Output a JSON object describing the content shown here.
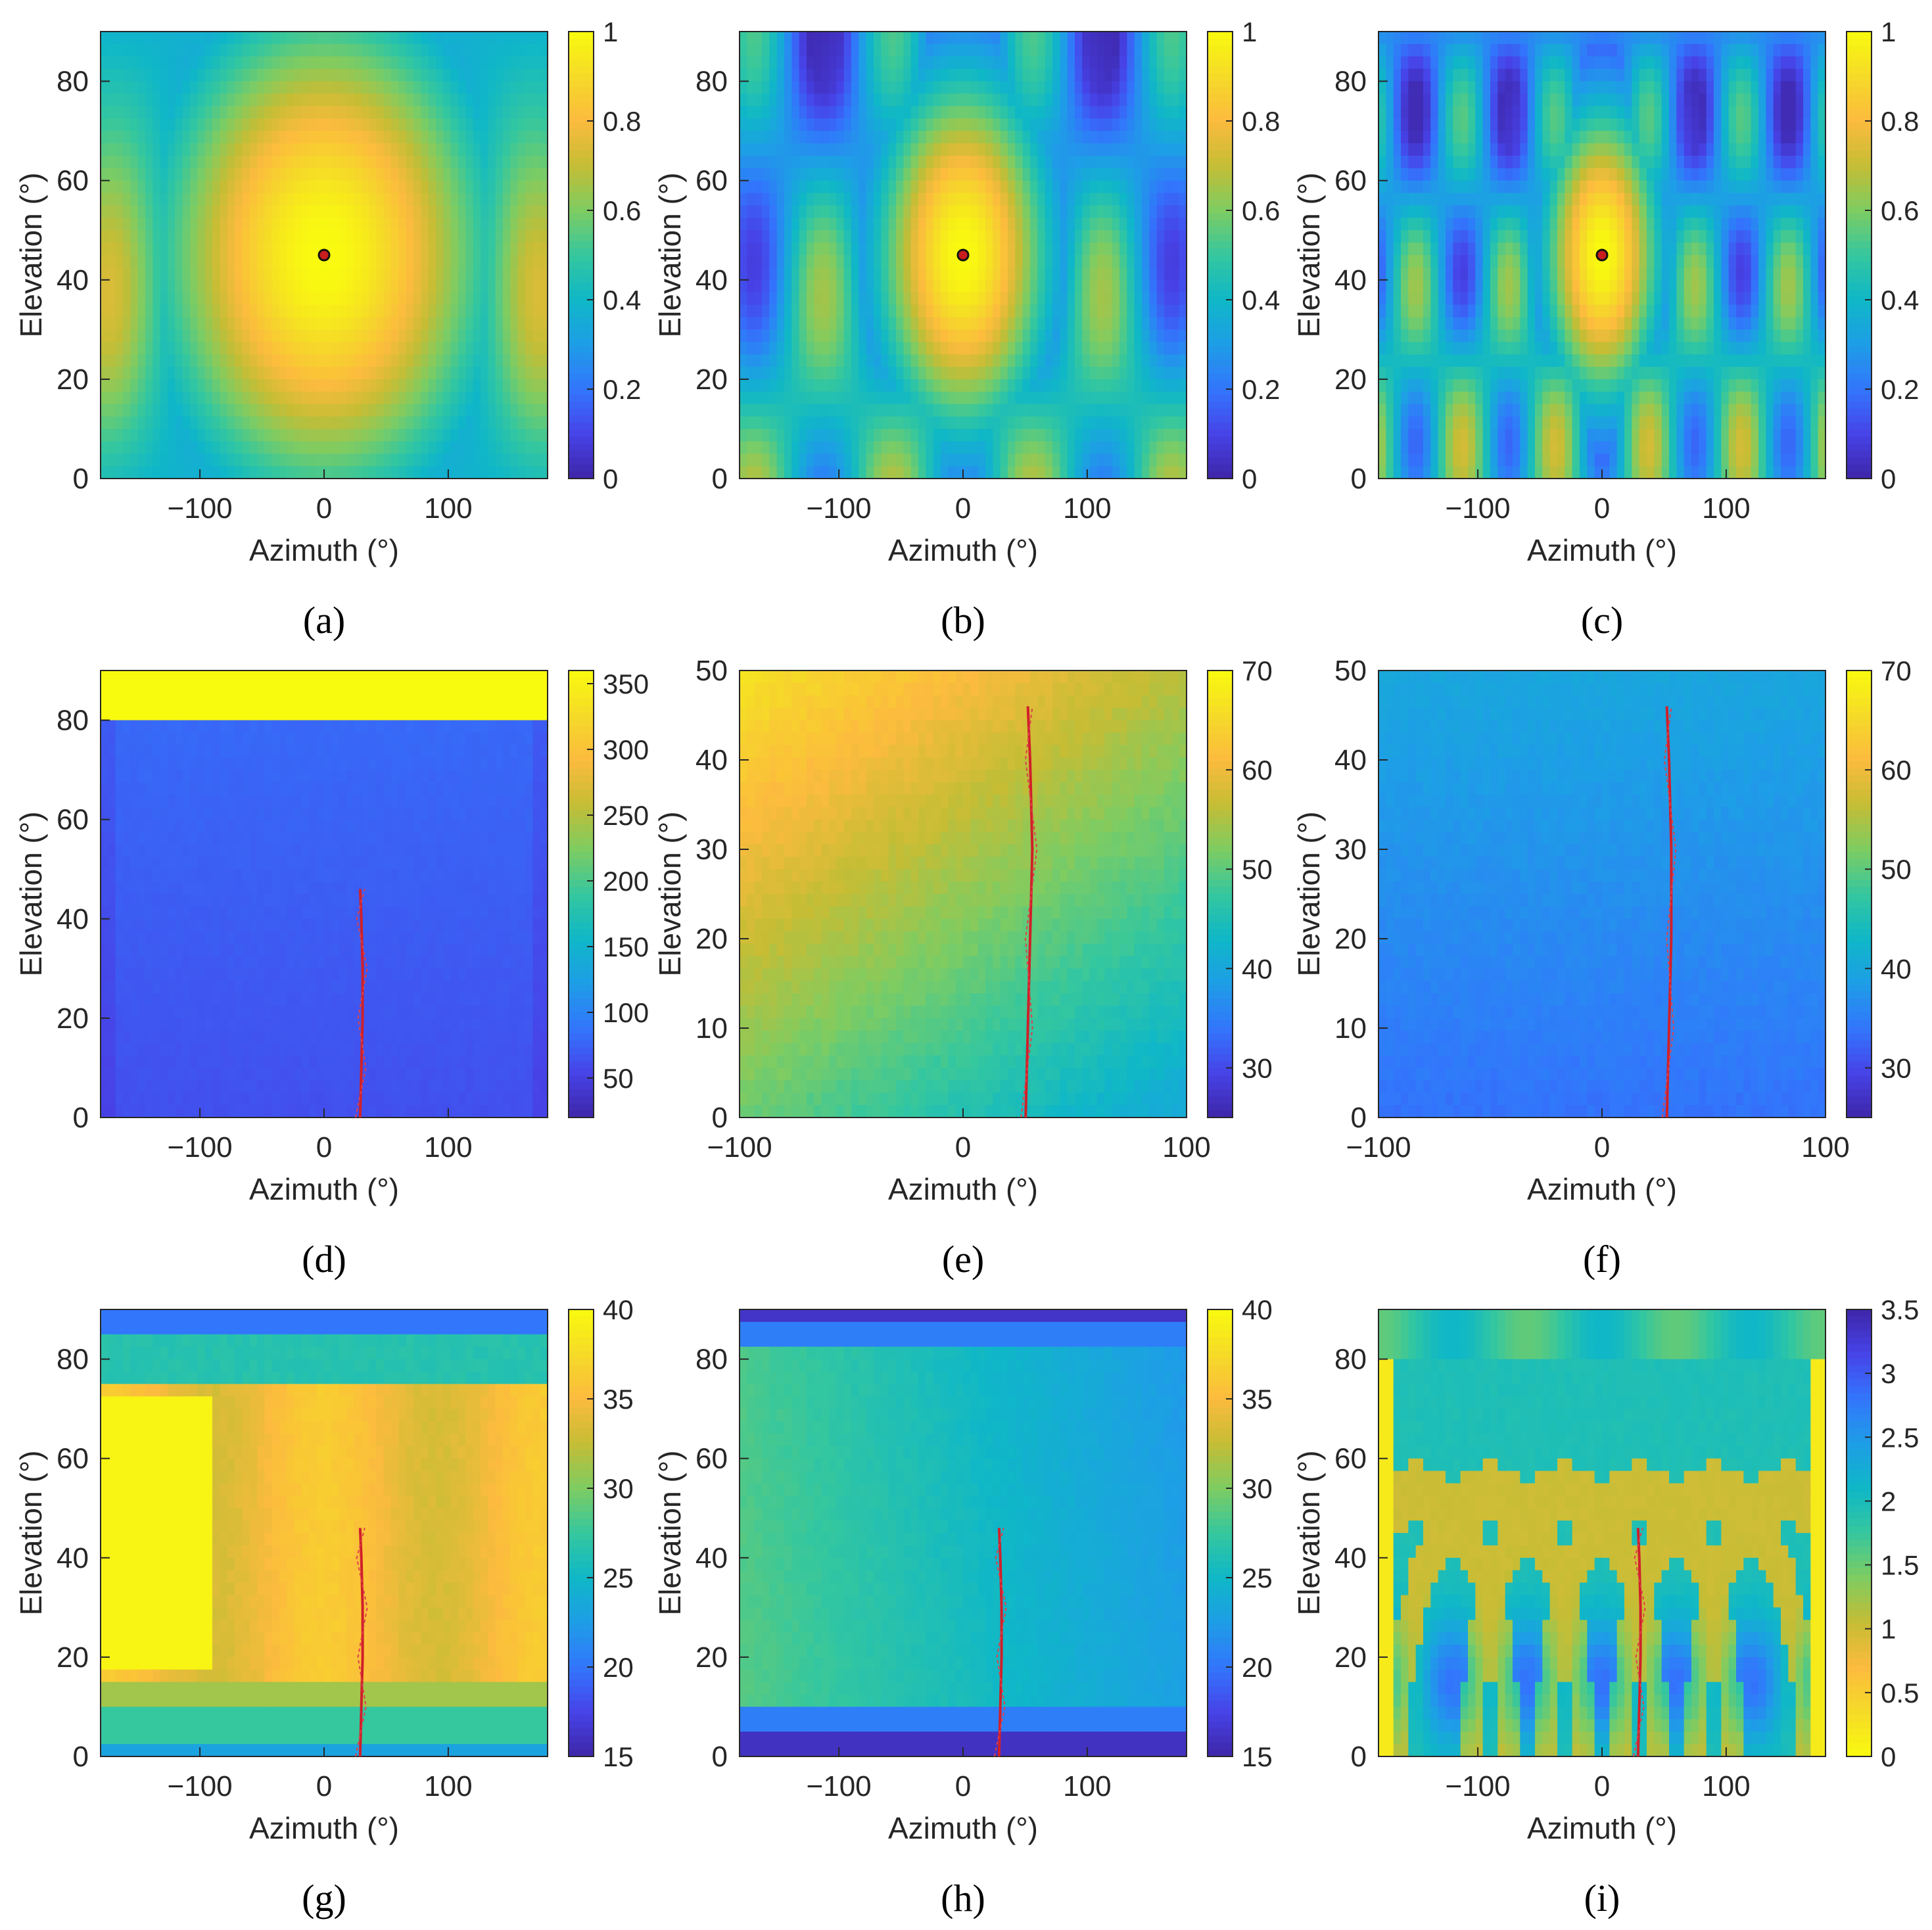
{
  "figure": {
    "panels_per_row": 3,
    "rows": 3
  },
  "colormap": "parula",
  "chart_data": [
    {
      "id": "a",
      "type": "heatmap",
      "caption": "(a)",
      "xlabel": "Azimuth (°)",
      "ylabel": "Elevation (°)",
      "xlim": [
        -180,
        180
      ],
      "ylim": [
        0,
        90
      ],
      "xticks": [
        -100,
        0,
        100
      ],
      "xtick_labels": [
        "−100",
        "0",
        "100"
      ],
      "yticks": [
        0,
        20,
        40,
        60,
        80
      ],
      "ytick_labels": [
        "0",
        "20",
        "40",
        "60",
        "80"
      ],
      "clim": [
        0,
        1
      ],
      "cticks": [
        0,
        0.2,
        0.4,
        0.6,
        0.8,
        1
      ],
      "ctick_labels": [
        "0",
        "0.2",
        "0.4",
        "0.6",
        "0.8",
        "1"
      ],
      "pattern": "array-beam",
      "lobes": 1,
      "peak": {
        "azimuth": 0,
        "elevation": 45
      },
      "marker": {
        "azimuth": 0,
        "elevation": 45
      }
    },
    {
      "id": "b",
      "type": "heatmap",
      "caption": "(b)",
      "xlabel": "Azimuth (°)",
      "ylabel": "Elevation (°)",
      "xlim": [
        -180,
        180
      ],
      "ylim": [
        0,
        90
      ],
      "xticks": [
        -100,
        0,
        100
      ],
      "xtick_labels": [
        "−100",
        "0",
        "100"
      ],
      "yticks": [
        0,
        20,
        40,
        60,
        80
      ],
      "ytick_labels": [
        "0",
        "20",
        "40",
        "60",
        "80"
      ],
      "clim": [
        0,
        1
      ],
      "cticks": [
        0,
        0.2,
        0.4,
        0.6,
        0.8,
        1
      ],
      "ctick_labels": [
        "0",
        "0.2",
        "0.4",
        "0.6",
        "0.8",
        "1"
      ],
      "pattern": "array-beam",
      "lobes": 2,
      "peak": {
        "azimuth": 0,
        "elevation": 45
      },
      "marker": {
        "azimuth": 0,
        "elevation": 45
      }
    },
    {
      "id": "c",
      "type": "heatmap",
      "caption": "(c)",
      "xlabel": "Azimuth (°)",
      "ylabel": "Elevation (°)",
      "xlim": [
        -180,
        180
      ],
      "ylim": [
        0,
        90
      ],
      "xticks": [
        -100,
        0,
        100
      ],
      "xtick_labels": [
        "−100",
        "0",
        "100"
      ],
      "yticks": [
        0,
        20,
        40,
        60,
        80
      ],
      "ytick_labels": [
        "0",
        "20",
        "40",
        "60",
        "80"
      ],
      "clim": [
        0,
        1
      ],
      "cticks": [
        0,
        0.2,
        0.4,
        0.6,
        0.8,
        1
      ],
      "ctick_labels": [
        "0",
        "0.2",
        "0.4",
        "0.6",
        "0.8",
        "1"
      ],
      "pattern": "array-beam",
      "lobes": 3,
      "peak": {
        "azimuth": 0,
        "elevation": 45
      },
      "marker": {
        "azimuth": 0,
        "elevation": 45
      }
    },
    {
      "id": "d",
      "type": "heatmap",
      "caption": "(d)",
      "xlabel": "Azimuth (°)",
      "ylabel": "Elevation (°)",
      "xlim": [
        -180,
        180
      ],
      "ylim": [
        0,
        90
      ],
      "xticks": [
        -100,
        0,
        100
      ],
      "xtick_labels": [
        "−100",
        "0",
        "100"
      ],
      "yticks": [
        0,
        20,
        40,
        60,
        80
      ],
      "ytick_labels": [
        "0",
        "20",
        "40",
        "60",
        "80"
      ],
      "clim": [
        20,
        360
      ],
      "cticks": [
        50,
        100,
        150,
        200,
        250,
        300,
        350
      ],
      "ctick_labels": [
        "50",
        "100",
        "150",
        "200",
        "250",
        "300",
        "350"
      ],
      "pattern": "error-map-saturated-top",
      "track": [
        [
          29,
          0
        ],
        [
          30,
          10
        ],
        [
          31,
          20
        ],
        [
          31,
          30
        ],
        [
          30,
          40
        ],
        [
          29,
          46
        ]
      ]
    },
    {
      "id": "e",
      "type": "heatmap",
      "caption": "(e)",
      "xlabel": "Azimuth (°)",
      "ylabel": "Elevation (°)",
      "xlim": [
        -100,
        100
      ],
      "ylim": [
        0,
        50
      ],
      "xticks": [
        -100,
        0,
        100
      ],
      "xtick_labels": [
        "−100",
        "0",
        "100"
      ],
      "yticks": [
        0,
        10,
        20,
        30,
        40,
        50
      ],
      "ytick_labels": [
        "0",
        "10",
        "20",
        "30",
        "40",
        "50"
      ],
      "clim": [
        25,
        70
      ],
      "cticks": [
        30,
        40,
        50,
        60,
        70
      ],
      "ctick_labels": [
        "30",
        "40",
        "50",
        "60",
        "70"
      ],
      "pattern": "error-map-gradient-high",
      "track": [
        [
          28,
          0
        ],
        [
          29,
          10
        ],
        [
          30,
          20
        ],
        [
          31,
          30
        ],
        [
          30,
          40
        ],
        [
          29,
          46
        ]
      ]
    },
    {
      "id": "f",
      "type": "heatmap",
      "caption": "(f)",
      "xlabel": "Azimuth (°)",
      "ylabel": "Elevation (°)",
      "xlim": [
        -100,
        100
      ],
      "ylim": [
        0,
        50
      ],
      "xticks": [
        -100,
        0,
        100
      ],
      "xtick_labels": [
        "−100",
        "0",
        "100"
      ],
      "yticks": [
        0,
        10,
        20,
        30,
        40,
        50
      ],
      "ytick_labels": [
        "0",
        "10",
        "20",
        "30",
        "40",
        "50"
      ],
      "clim": [
        25,
        70
      ],
      "cticks": [
        30,
        40,
        50,
        60,
        70
      ],
      "ctick_labels": [
        "30",
        "40",
        "50",
        "60",
        "70"
      ],
      "pattern": "error-map-flat-low",
      "track": [
        [
          29,
          0
        ],
        [
          30,
          10
        ],
        [
          31,
          20
        ],
        [
          31,
          30
        ],
        [
          30,
          40
        ],
        [
          29,
          46
        ]
      ]
    },
    {
      "id": "g",
      "type": "heatmap",
      "caption": "(g)",
      "xlabel": "Azimuth (°)",
      "ylabel": "Elevation (°)",
      "xlim": [
        -180,
        180
      ],
      "ylim": [
        0,
        90
      ],
      "xticks": [
        -100,
        0,
        100
      ],
      "xtick_labels": [
        "−100",
        "0",
        "100"
      ],
      "yticks": [
        0,
        20,
        40,
        60,
        80
      ],
      "ytick_labels": [
        "0",
        "20",
        "40",
        "60",
        "80"
      ],
      "clim": [
        15,
        40
      ],
      "cticks": [
        15,
        20,
        25,
        30,
        35,
        40
      ],
      "ctick_labels": [
        "15",
        "20",
        "25",
        "30",
        "35",
        "40"
      ],
      "pattern": "snr-map-high",
      "track": [
        [
          29,
          0
        ],
        [
          30,
          10
        ],
        [
          31,
          20
        ],
        [
          31,
          30
        ],
        [
          30,
          40
        ],
        [
          29,
          46
        ]
      ]
    },
    {
      "id": "h",
      "type": "heatmap",
      "caption": "(h)",
      "xlabel": "Azimuth (°)",
      "ylabel": "Elevation (°)",
      "xlim": [
        -180,
        180
      ],
      "ylim": [
        0,
        90
      ],
      "xticks": [
        -100,
        0,
        100
      ],
      "xtick_labels": [
        "−100",
        "0",
        "100"
      ],
      "yticks": [
        0,
        20,
        40,
        60,
        80
      ],
      "ytick_labels": [
        "0",
        "20",
        "40",
        "60",
        "80"
      ],
      "clim": [
        15,
        40
      ],
      "cticks": [
        15,
        20,
        25,
        30,
        35,
        40
      ],
      "ctick_labels": [
        "15",
        "20",
        "25",
        "30",
        "35",
        "40"
      ],
      "pattern": "snr-map-low",
      "track": [
        [
          29,
          0
        ],
        [
          30,
          10
        ],
        [
          31,
          20
        ],
        [
          31,
          30
        ],
        [
          30,
          40
        ],
        [
          29,
          46
        ]
      ]
    },
    {
      "id": "i",
      "type": "heatmap",
      "caption": "(i)",
      "xlabel": "Azimuth (°)",
      "ylabel": "Elevation (°)",
      "xlim": [
        -180,
        180
      ],
      "ylim": [
        0,
        90
      ],
      "xticks": [
        -100,
        0,
        100
      ],
      "xtick_labels": [
        "−100",
        "0",
        "100"
      ],
      "yticks": [
        0,
        20,
        40,
        60,
        80
      ],
      "ytick_labels": [
        "0",
        "20",
        "40",
        "60",
        "80"
      ],
      "clim": [
        0,
        3.5
      ],
      "reversed_colormap": true,
      "cticks": [
        0,
        0.5,
        1,
        1.5,
        2,
        2.5,
        3,
        3.5
      ],
      "ctick_labels": [
        "0",
        "0.5",
        "1",
        "1.5",
        "2",
        "2.5",
        "3",
        "3.5"
      ],
      "pattern": "arcs-map",
      "track": [
        [
          29,
          0
        ],
        [
          30,
          10
        ],
        [
          31,
          20
        ],
        [
          31,
          30
        ],
        [
          30,
          40
        ],
        [
          29,
          46
        ]
      ]
    }
  ]
}
